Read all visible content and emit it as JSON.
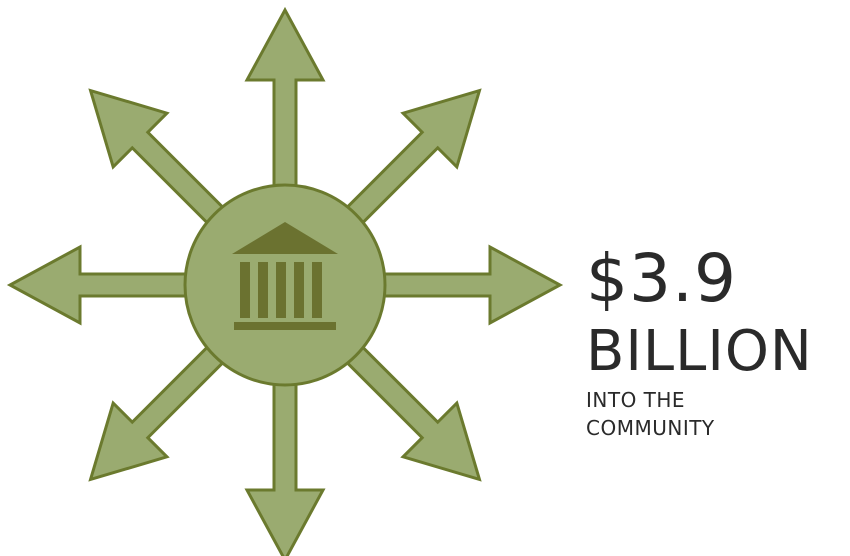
{
  "colors": {
    "arrow_fill": "#9aab70",
    "arrow_stroke": "#6b7a2e",
    "hub_fill": "#9aab70",
    "bank_icon": "#6b7230",
    "text": "#2a2a2a"
  },
  "graphic": {
    "arrow_count": 8,
    "center_icon": "bank-building-icon"
  },
  "stat": {
    "amount": "$3.9",
    "unit": "BILLION",
    "caption_line1": "INTO THE",
    "caption_line2": "COMMUNITY"
  }
}
